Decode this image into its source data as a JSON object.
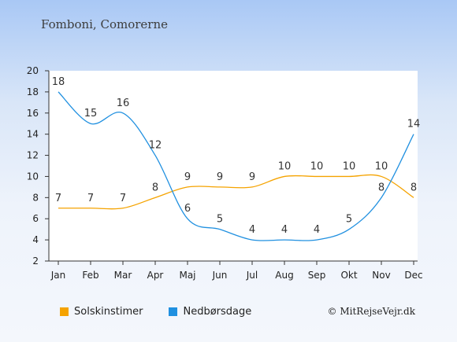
{
  "title": "Fomboni, Comorerne",
  "copyright": "© MitRejseVejr.dk",
  "colors": {
    "sunshine": "#f5a300",
    "rain": "#2090e0"
  },
  "chart_data": {
    "type": "line",
    "categories": [
      "Jan",
      "Feb",
      "Mar",
      "Apr",
      "Maj",
      "Jun",
      "Jul",
      "Aug",
      "Sep",
      "Okt",
      "Nov",
      "Dec"
    ],
    "series": [
      {
        "name": "Solskinstimer",
        "color": "#f5a300",
        "values": [
          7,
          7,
          7,
          8,
          9,
          9,
          9,
          10,
          10,
          10,
          10,
          8
        ]
      },
      {
        "name": "Nedbørsdage",
        "color": "#2090e0",
        "values": [
          18,
          15,
          16,
          12,
          6,
          5,
          4,
          4,
          4,
          5,
          8,
          14
        ]
      }
    ],
    "ylim": [
      2,
      20
    ],
    "yticks": [
      2,
      4,
      6,
      8,
      10,
      12,
      14,
      16,
      18,
      20
    ],
    "legend": "bottom-left",
    "grid": false
  }
}
